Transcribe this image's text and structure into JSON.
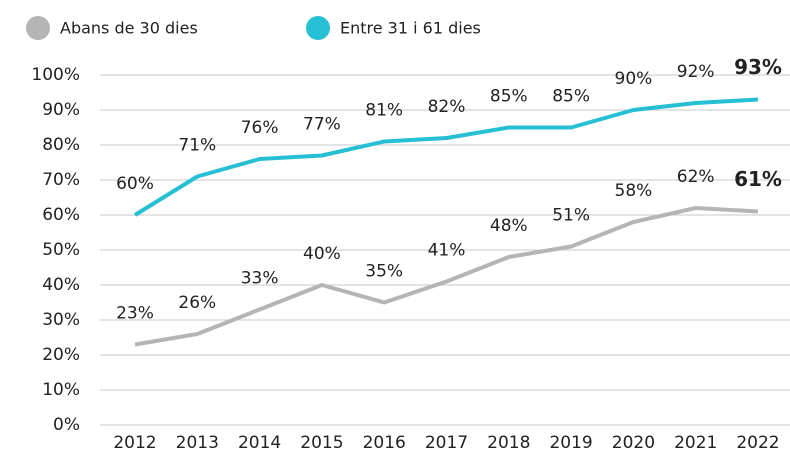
{
  "chart_data": {
    "type": "line",
    "categories": [
      "2012",
      "2013",
      "2014",
      "2015",
      "2016",
      "2017",
      "2018",
      "2019",
      "2020",
      "2021",
      "2022"
    ],
    "series": [
      {
        "name": "Abans de 30 dies",
        "color": "#b5b5b5",
        "values": [
          23,
          26,
          33,
          40,
          35,
          41,
          48,
          51,
          58,
          62,
          61
        ],
        "value_labels": [
          "23%",
          "26%",
          "33%",
          "40%",
          "35%",
          "41%",
          "48%",
          "51%",
          "58%",
          "62%",
          "61%"
        ]
      },
      {
        "name": "Entre 31 i 61 dies",
        "color": "#26bfd4",
        "values": [
          60,
          71,
          76,
          77,
          81,
          82,
          85,
          85,
          90,
          92,
          93
        ],
        "value_labels": [
          "60%",
          "71%",
          "76%",
          "77%",
          "81%",
          "82%",
          "85%",
          "85%",
          "90%",
          "92%",
          "93%"
        ]
      }
    ],
    "ylim": [
      0,
      100
    ],
    "yticks": [
      {
        "value": 0,
        "label": "0%"
      },
      {
        "value": 10,
        "label": "10%"
      },
      {
        "value": 20,
        "label": "20%"
      },
      {
        "value": 30,
        "label": "30%"
      },
      {
        "value": 40,
        "label": "40%"
      },
      {
        "value": 50,
        "label": "50%"
      },
      {
        "value": 60,
        "label": "60%"
      },
      {
        "value": 70,
        "label": "70%"
      },
      {
        "value": 80,
        "label": "80%"
      },
      {
        "value": 90,
        "label": "90%"
      },
      {
        "value": 100,
        "label": "100%"
      }
    ],
    "grid": true
  }
}
